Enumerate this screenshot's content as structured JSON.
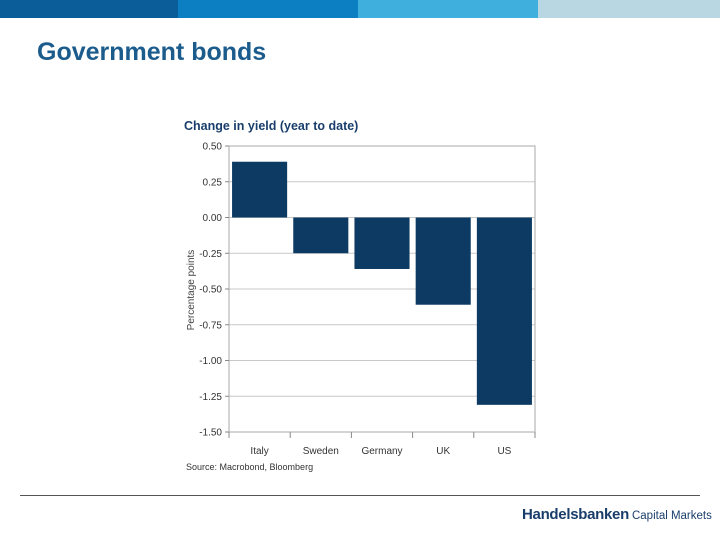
{
  "header_colors": [
    "#0a5d99",
    "#0b7fc2",
    "#3fb0dd",
    "#b9d6e3"
  ],
  "slide_title": "Government bonds",
  "chart_data": {
    "type": "bar",
    "title": "Change in yield (year to date)",
    "ylabel": "Percentage points",
    "xlabel": "",
    "categories": [
      "Italy",
      "Sweden",
      "Germany",
      "UK",
      "US"
    ],
    "values": [
      0.39,
      -0.25,
      -0.36,
      -0.61,
      -1.31
    ],
    "ylim": [
      -1.5,
      0.5
    ],
    "yticks": [
      0.5,
      0.25,
      0.0,
      -0.25,
      -0.5,
      -0.75,
      -1.0,
      -1.25,
      -1.5
    ],
    "ytick_labels": [
      "0.50",
      "0.25",
      "0.00",
      "-0.25",
      "-0.50",
      "-0.75",
      "-1.00",
      "-1.25",
      "-1.50"
    ],
    "grid": true,
    "bar_color": "#0c3a62",
    "source": "Source: Macrobond, Bloomberg"
  },
  "footer": {
    "brand_main": "Handelsbanken",
    "brand_sub": "Capital Markets"
  }
}
